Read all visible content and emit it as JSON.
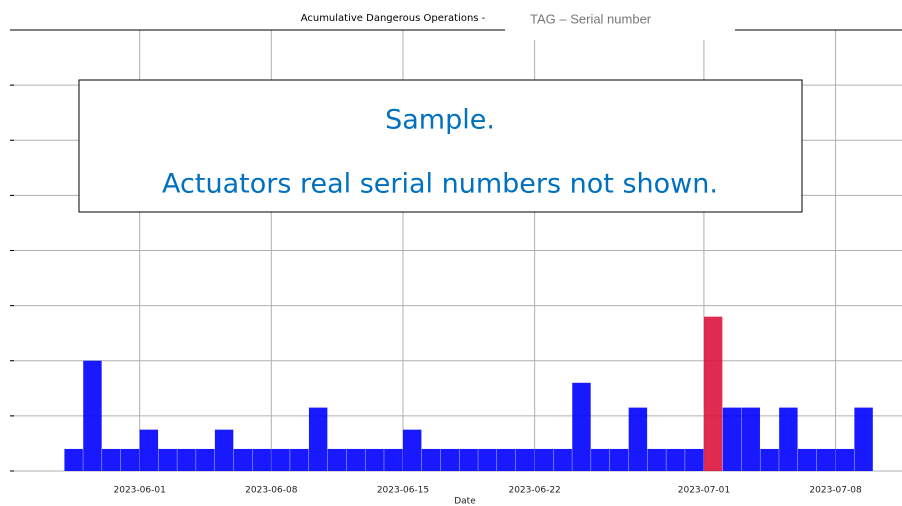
{
  "chart_data": {
    "type": "bar",
    "title": "Acumulative Dangerous Operations - ",
    "overlay_label": "TAG – Serial number",
    "notice": [
      "Sample.",
      "Actuators real serial numbers not shown."
    ],
    "x_label": "Date",
    "x": [
      "2023-05-28",
      "2023-05-29",
      "2023-05-30",
      "2023-05-31",
      "2023-06-01",
      "2023-06-02",
      "2023-06-03",
      "2023-06-04",
      "2023-06-05",
      "2023-06-06",
      "2023-06-07",
      "2023-06-08",
      "2023-06-09",
      "2023-06-10",
      "2023-06-11",
      "2023-06-12",
      "2023-06-13",
      "2023-06-14",
      "2023-06-15",
      "2023-06-16",
      "2023-06-17",
      "2023-06-18",
      "2023-06-19",
      "2023-06-20",
      "2023-06-21",
      "2023-06-22",
      "2023-06-23",
      "2023-06-24",
      "2023-06-25",
      "2023-06-26",
      "2023-06-27",
      "2023-06-28",
      "2023-06-29",
      "2023-06-30",
      "2023-07-01",
      "2023-07-02",
      "2023-07-03",
      "2023-07-04",
      "2023-07-05",
      "2023-07-06",
      "2023-07-07",
      "2023-07-08",
      "2023-07-09"
    ],
    "values": [
      0.4,
      2.0,
      0.4,
      0.4,
      0.75,
      0.4,
      0.4,
      0.4,
      0.75,
      0.4,
      0.4,
      0.4,
      0.4,
      1.15,
      0.4,
      0.4,
      0.4,
      0.4,
      0.75,
      0.4,
      0.4,
      0.4,
      0.4,
      0.4,
      0.4,
      0.4,
      0.4,
      1.6,
      0.4,
      0.4,
      1.15,
      0.4,
      0.4,
      0.4,
      2.8,
      1.15,
      1.15,
      0.4,
      1.15,
      0.4,
      0.4,
      0.4,
      1.15
    ],
    "colors": [
      "#0000ff",
      "#0000ff",
      "#0000ff",
      "#0000ff",
      "#0000ff",
      "#0000ff",
      "#0000ff",
      "#0000ff",
      "#0000ff",
      "#0000ff",
      "#0000ff",
      "#0000ff",
      "#0000ff",
      "#0000ff",
      "#0000ff",
      "#0000ff",
      "#0000ff",
      "#0000ff",
      "#0000ff",
      "#0000ff",
      "#0000ff",
      "#0000ff",
      "#0000ff",
      "#0000ff",
      "#0000ff",
      "#0000ff",
      "#0000ff",
      "#0000ff",
      "#0000ff",
      "#0000ff",
      "#0000ff",
      "#0000ff",
      "#0000ff",
      "#0000ff",
      "#dc143c",
      "#0000ff",
      "#0000ff",
      "#0000ff",
      "#0000ff",
      "#0000ff",
      "#0000ff",
      "#0000ff",
      "#0000ff"
    ],
    "xlim": [
      "2023-05-25",
      "2023-07-11"
    ],
    "xticks": [
      "2023-06-01",
      "2023-06-08",
      "2023-06-15",
      "2023-06-22",
      "2023-07-01",
      "2023-07-08"
    ],
    "ylim": [
      0,
      8
    ],
    "yticks": [
      0,
      1,
      2,
      3,
      4,
      5,
      6,
      7,
      8
    ],
    "grid": true
  }
}
